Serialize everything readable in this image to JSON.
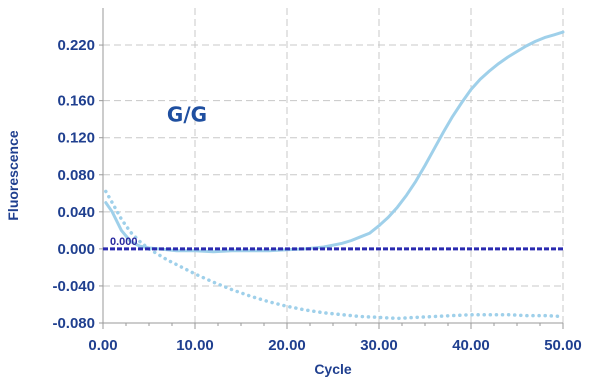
{
  "chart_data": {
    "type": "line",
    "title": "",
    "xlabel": "Cycle",
    "ylabel": "Fluorescence",
    "xlim": [
      0,
      50
    ],
    "ylim": [
      -0.08,
      0.26
    ],
    "x_ticks": [
      "0.00",
      "10.00",
      "20.00",
      "30.00",
      "40.00",
      "50.00"
    ],
    "x_tick_values": [
      0,
      10,
      20,
      30,
      40,
      50
    ],
    "y_ticks": [
      "0.220",
      "0.160",
      "0.120",
      "0.080",
      "0.040",
      "0.000",
      "-0.040",
      "-0.080"
    ],
    "y_tick_values": [
      0.22,
      0.16,
      0.12,
      0.08,
      0.04,
      0.0,
      -0.04,
      -0.08
    ],
    "grid": true,
    "annotations": [
      {
        "text": "G/G",
        "x": 7.5,
        "y": 0.145
      }
    ],
    "threshold": {
      "label": "0.000",
      "value": 0.0
    },
    "series": [
      {
        "style": "solid",
        "color": "#9fd0ea",
        "x": [
          0.3,
          1,
          2,
          3,
          4,
          5,
          6,
          7,
          8,
          10,
          12,
          14,
          16,
          18,
          20,
          22,
          24,
          26,
          27,
          28,
          29,
          30,
          31,
          32,
          33,
          34,
          35,
          36,
          37,
          38,
          39,
          40,
          41,
          42,
          43,
          44,
          45,
          46,
          47,
          48,
          49,
          50
        ],
        "y": [
          0.05,
          0.04,
          0.02,
          0.008,
          0.003,
          0.001,
          0.0,
          -0.001,
          -0.002,
          -0.002,
          -0.003,
          -0.002,
          -0.002,
          -0.002,
          -0.001,
          0.0,
          0.002,
          0.006,
          0.009,
          0.013,
          0.017,
          0.025,
          0.034,
          0.045,
          0.058,
          0.073,
          0.09,
          0.108,
          0.126,
          0.143,
          0.158,
          0.172,
          0.183,
          0.192,
          0.2,
          0.207,
          0.213,
          0.219,
          0.224,
          0.228,
          0.231,
          0.234
        ]
      },
      {
        "style": "dotted",
        "color": "#9fd0ea",
        "x": [
          0.3,
          1,
          2,
          3,
          4,
          5,
          6,
          7,
          8,
          10,
          12,
          14,
          16,
          18,
          20,
          22,
          24,
          26,
          28,
          30,
          32,
          34,
          36,
          38,
          40,
          42,
          44,
          46,
          48,
          50
        ],
        "y": [
          0.062,
          0.05,
          0.032,
          0.018,
          0.008,
          0.0,
          -0.006,
          -0.012,
          -0.017,
          -0.027,
          -0.036,
          -0.044,
          -0.051,
          -0.057,
          -0.062,
          -0.066,
          -0.069,
          -0.071,
          -0.073,
          -0.074,
          -0.075,
          -0.074,
          -0.073,
          -0.072,
          -0.071,
          -0.071,
          -0.071,
          -0.072,
          -0.072,
          -0.073
        ]
      }
    ]
  }
}
